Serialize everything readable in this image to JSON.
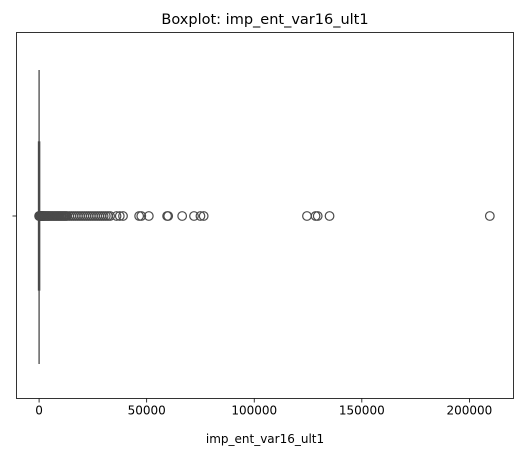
{
  "chart_data": {
    "type": "boxplot",
    "title": "Boxplot: imp_ent_var16_ult1",
    "xlabel": "imp_ent_var16_ult1",
    "ylabel": "",
    "orientation": "horizontal",
    "xlim": [
      -10500,
      220500
    ],
    "xticks": [
      0,
      50000,
      100000,
      150000,
      200000
    ],
    "xtick_labels": [
      "0",
      "50000",
      "100000",
      "150000",
      "200000"
    ],
    "yticks": [
      0
    ],
    "ytick_labels": [
      ""
    ],
    "grid": false,
    "box_color": "#4a4a4a",
    "box": {
      "q1": 0,
      "median": 0,
      "q3": 0,
      "whisker_low": 0,
      "whisker_high": 0
    },
    "outliers": [
      30,
      60,
      100,
      150,
      200,
      300,
      400,
      500,
      600,
      700,
      800,
      900,
      1000,
      1200,
      1400,
      1600,
      1800,
      2000,
      2300,
      2600,
      3000,
      3400,
      3800,
      4200,
      4600,
      5000,
      5500,
      6000,
      6500,
      7000,
      7500,
      8000,
      8500,
      9000,
      9500,
      10000,
      10500,
      11000,
      11500,
      12000,
      12500,
      13000,
      14000,
      15000,
      16000,
      17000,
      18000,
      19000,
      20000,
      21000,
      22000,
      23000,
      24000,
      25000,
      26000,
      27000,
      28000,
      29000,
      30000,
      31000,
      32000,
      33000,
      36000,
      37500,
      39000,
      46500,
      47500,
      51000,
      59500,
      60000,
      66500,
      72000,
      75000,
      76500,
      124500,
      128500,
      129500,
      135000,
      209500
    ]
  }
}
